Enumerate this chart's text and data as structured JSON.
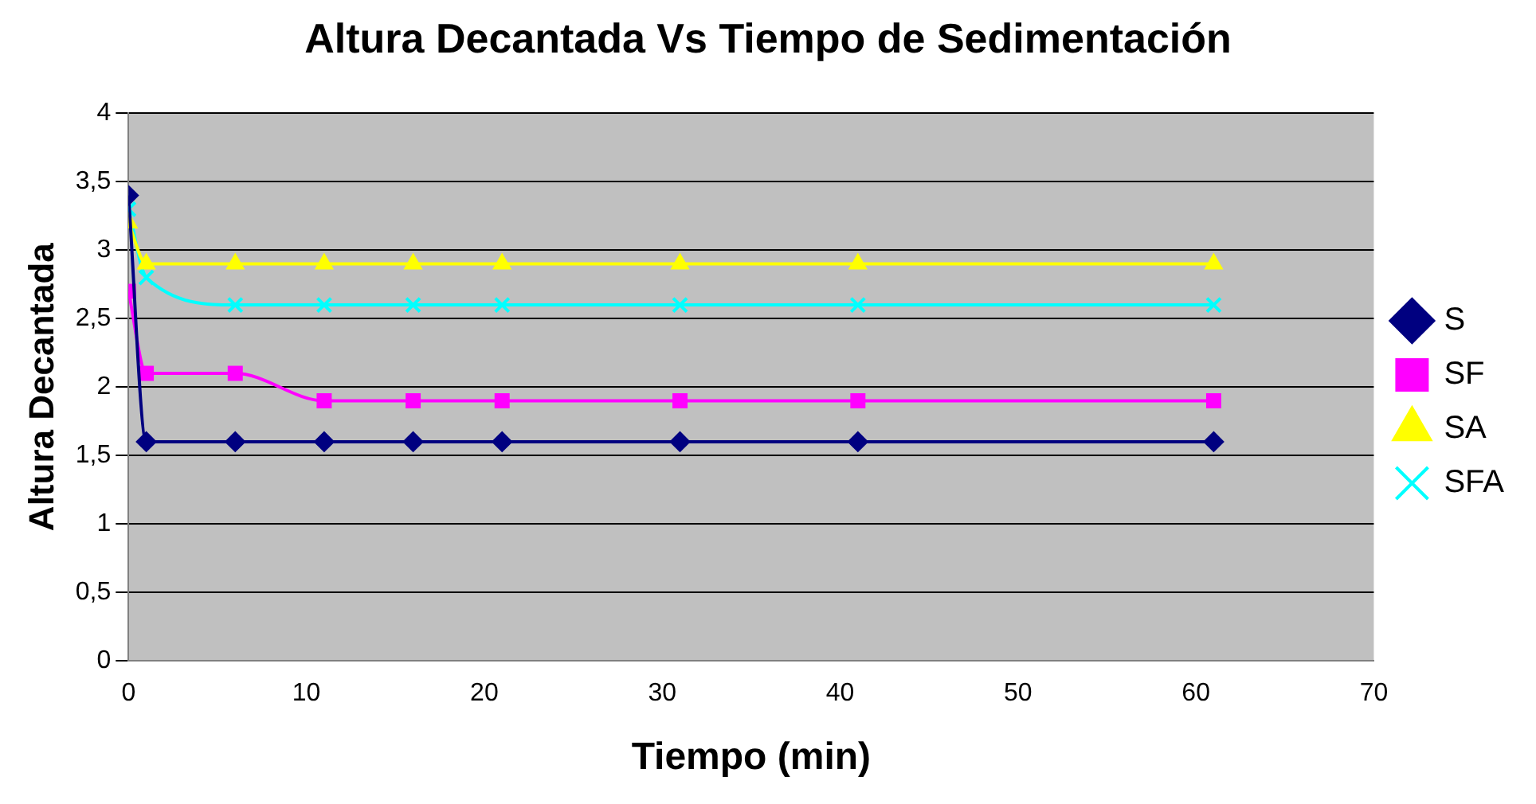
{
  "chart_data": {
    "type": "line",
    "title": "Altura Decantada Vs Tiempo de Sedimentación",
    "xlabel": "Tiempo (min)",
    "ylabel": "Altura Decantada",
    "x": [
      0,
      1,
      6,
      11,
      16,
      21,
      31,
      41,
      61
    ],
    "series": [
      {
        "name": "S",
        "color": "#000080",
        "marker": "diamond",
        "values": [
          3.4,
          1.6,
          1.6,
          1.6,
          1.6,
          1.6,
          1.6,
          1.6,
          1.6
        ]
      },
      {
        "name": "SF",
        "color": "#ff00ff",
        "marker": "square",
        "values": [
          2.7,
          2.1,
          2.1,
          1.9,
          1.9,
          1.9,
          1.9,
          1.9,
          1.9
        ]
      },
      {
        "name": "SA",
        "color": "#ffff00",
        "marker": "triangle",
        "values": [
          3.2,
          2.9,
          2.9,
          2.9,
          2.9,
          2.9,
          2.9,
          2.9,
          2.9
        ]
      },
      {
        "name": "SFA",
        "color": "#00ffff",
        "marker": "cross",
        "values": [
          3.3,
          2.8,
          2.6,
          2.6,
          2.6,
          2.6,
          2.6,
          2.6,
          2.6
        ]
      }
    ],
    "xlim": [
      0,
      70
    ],
    "xticks": [
      0,
      10,
      20,
      30,
      40,
      50,
      60,
      70
    ],
    "ylim": [
      0,
      4
    ],
    "yticks": [
      0,
      {
        "value": 0.5,
        "label": "0,5"
      },
      1,
      {
        "value": 1.5,
        "label": "1,5"
      },
      2,
      {
        "value": 2.5,
        "label": "2,5"
      },
      3,
      {
        "value": 3.5,
        "label": "3,5"
      },
      4
    ],
    "grid": "y",
    "legend": "right"
  }
}
